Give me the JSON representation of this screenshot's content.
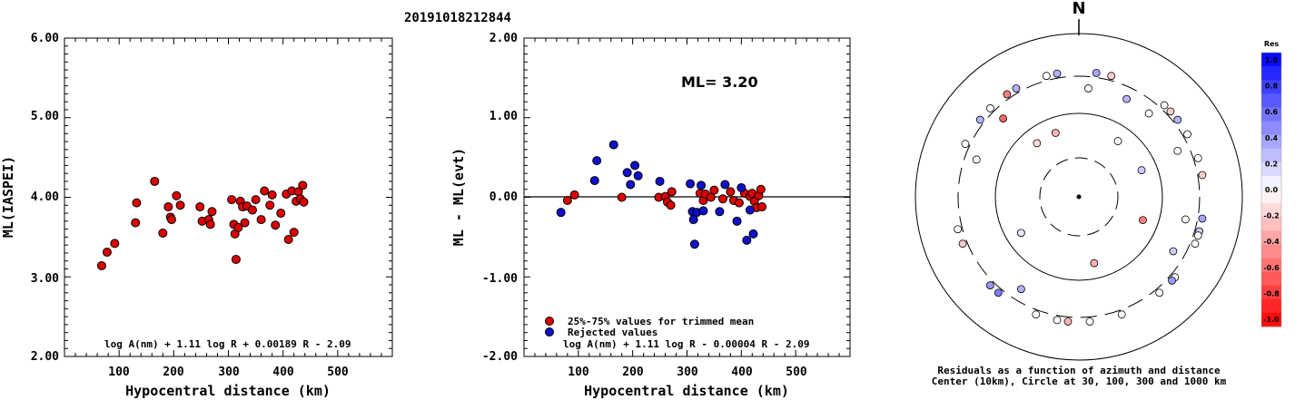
{
  "figure_title": "20191018212844",
  "colors": {
    "red": "#dd0000",
    "blue": "#1010cc",
    "black": "#000000"
  },
  "chart_data": [
    {
      "type": "scatter",
      "xlabel": "Hypocentral distance (km)",
      "ylabel": "ML(IASPEI)",
      "xlim": [
        0,
        600
      ],
      "ylim": [
        2.0,
        6.0
      ],
      "xticks": [
        "100",
        "200",
        "300",
        "400",
        "500"
      ],
      "yticks": [
        "2.00",
        "3.00",
        "4.00",
        "5.00",
        "6.00"
      ],
      "formula": "log A(nm) + 1.11 log R + 0.00189 R - 2.09",
      "points": [
        [
          68,
          3.14
        ],
        [
          78,
          3.31
        ],
        [
          92,
          3.42
        ],
        [
          130,
          3.68
        ],
        [
          132,
          3.93
        ],
        [
          165,
          4.2
        ],
        [
          180,
          3.55
        ],
        [
          190,
          3.88
        ],
        [
          194,
          3.75
        ],
        [
          196,
          3.72
        ],
        [
          205,
          4.02
        ],
        [
          212,
          3.9
        ],
        [
          248,
          3.88
        ],
        [
          252,
          3.7
        ],
        [
          264,
          3.72
        ],
        [
          267,
          3.66
        ],
        [
          270,
          3.82
        ],
        [
          306,
          3.97
        ],
        [
          310,
          3.66
        ],
        [
          312,
          3.54
        ],
        [
          314,
          3.22
        ],
        [
          318,
          3.62
        ],
        [
          322,
          3.95
        ],
        [
          326,
          3.88
        ],
        [
          330,
          3.68
        ],
        [
          334,
          3.89
        ],
        [
          344,
          3.84
        ],
        [
          350,
          3.97
        ],
        [
          360,
          3.72
        ],
        [
          366,
          4.08
        ],
        [
          376,
          3.9
        ],
        [
          380,
          4.03
        ],
        [
          386,
          3.65
        ],
        [
          396,
          3.8
        ],
        [
          406,
          4.04
        ],
        [
          410,
          3.47
        ],
        [
          416,
          4.08
        ],
        [
          420,
          3.56
        ],
        [
          424,
          3.95
        ],
        [
          428,
          4.07
        ],
        [
          432,
          3.98
        ],
        [
          436,
          4.15
        ],
        [
          438,
          3.94
        ]
      ]
    },
    {
      "type": "scatter",
      "xlabel": "Hypocentral distance (km)",
      "ylabel": "ML - ML(evt)",
      "xlim": [
        0,
        600
      ],
      "ylim": [
        -2.0,
        2.0
      ],
      "xticks": [
        "100",
        "200",
        "300",
        "400",
        "500"
      ],
      "yticks": [
        "-2.00",
        "-1.00",
        "0.00",
        "1.00",
        "2.00"
      ],
      "ml_label": "ML= 3.20",
      "formula": "log A(nm) + 1.11 log R - 0.00004 R - 2.09",
      "legend": [
        {
          "label": "25%-75% values for trimmed mean",
          "color": "#dd0000"
        },
        {
          "label": "Rejected values",
          "color": "#1010cc"
        }
      ],
      "series": [
        {
          "color": "#dd0000",
          "points": [
            [
              80,
              -0.04
            ],
            [
              93,
              0.03
            ],
            [
              180,
              0.0
            ],
            [
              248,
              0.0
            ],
            [
              260,
              0.01
            ],
            [
              264,
              -0.06
            ],
            [
              270,
              -0.1
            ],
            [
              272,
              0.07
            ],
            [
              324,
              0.05
            ],
            [
              330,
              -0.04
            ],
            [
              334,
              0.04
            ],
            [
              344,
              0.0
            ],
            [
              350,
              0.09
            ],
            [
              366,
              -0.02
            ],
            [
              380,
              0.07
            ],
            [
              386,
              -0.04
            ],
            [
              396,
              -0.07
            ],
            [
              406,
              0.05
            ],
            [
              416,
              0.01
            ],
            [
              420,
              0.05
            ],
            [
              424,
              -0.05
            ],
            [
              428,
              -0.13
            ],
            [
              432,
              0.02
            ],
            [
              436,
              0.1
            ],
            [
              438,
              -0.12
            ]
          ]
        },
        {
          "color": "#1010cc",
          "points": [
            [
              68,
              -0.19
            ],
            [
              130,
              0.21
            ],
            [
              134,
              0.46
            ],
            [
              165,
              0.66
            ],
            [
              190,
              0.31
            ],
            [
              196,
              0.16
            ],
            [
              204,
              0.4
            ],
            [
              210,
              0.27
            ],
            [
              250,
              0.2
            ],
            [
              306,
              0.17
            ],
            [
              310,
              -0.18
            ],
            [
              312,
              -0.28
            ],
            [
              314,
              -0.59
            ],
            [
              318,
              -0.19
            ],
            [
              326,
              0.15
            ],
            [
              330,
              -0.17
            ],
            [
              360,
              -0.18
            ],
            [
              370,
              0.16
            ],
            [
              392,
              -0.3
            ],
            [
              400,
              0.12
            ],
            [
              410,
              -0.54
            ],
            [
              416,
              -0.16
            ],
            [
              422,
              -0.46
            ]
          ]
        }
      ]
    },
    {
      "type": "polar-scatter",
      "north_label": "N",
      "caption_line1": "Residuals as a function of azimuth and distance",
      "caption_line2": "Center (10km), Circle at 30, 100, 300 and 1000 km",
      "rings": [
        30,
        100,
        300,
        1000
      ],
      "colorbar": {
        "title": "Res",
        "labels": [
          "1.0",
          "0.8",
          "0.6",
          "0.4",
          "0.2",
          "0.0",
          "-0.2",
          "-0.4",
          "-0.6",
          "-0.8",
          "-1.0"
        ],
        "top_color": "#0000ff",
        "mid_color": "#ffffff",
        "bottom_color": "#ff0000"
      },
      "points": [
        [
          15,
          -0.2
        ],
        [
          5,
          0.0
        ],
        [
          -15,
          0.0
        ],
        [
          -38,
          -0.15
        ],
        [
          -45,
          0.0
        ],
        [
          -35,
          -0.5
        ],
        [
          -44,
          -0.6
        ],
        [
          -30,
          0.3
        ],
        [
          -10,
          0.3
        ],
        [
          8,
          0.35
        ],
        [
          35,
          0.0
        ],
        [
          40,
          0.0
        ],
        [
          43,
          0.0
        ],
        [
          47,
          -0.2
        ],
        [
          52,
          0.3
        ],
        [
          60,
          0.0
        ],
        [
          65,
          0.0
        ],
        [
          67,
          0.2
        ],
        [
          72,
          0.0
        ],
        [
          80,
          -0.2
        ],
        [
          100,
          0.35
        ],
        [
          102,
          0.0
        ],
        [
          106,
          0.2
        ],
        [
          108,
          0.0
        ],
        [
          110,
          -0.5
        ],
        [
          112,
          0.0
        ],
        [
          120,
          0.2
        ],
        [
          130,
          0.0
        ],
        [
          132,
          0.4
        ],
        [
          140,
          0.0
        ],
        [
          160,
          0.0
        ],
        [
          167,
          -0.3
        ],
        [
          175,
          0.0
        ],
        [
          185,
          -0.3
        ],
        [
          190,
          0.0
        ],
        [
          200,
          0.0
        ],
        [
          212,
          0.3
        ],
        [
          225,
          0.4
        ],
        [
          238,
          0.1
        ],
        [
          248,
          -0.2
        ],
        [
          255,
          0.0
        ],
        [
          290,
          0.0
        ],
        [
          295,
          0.0
        ],
        [
          308,
          0.3
        ],
        [
          220,
          0.5
        ],
        [
          340,
          -0.3
        ],
        [
          26,
          0.3
        ]
      ]
    }
  ]
}
